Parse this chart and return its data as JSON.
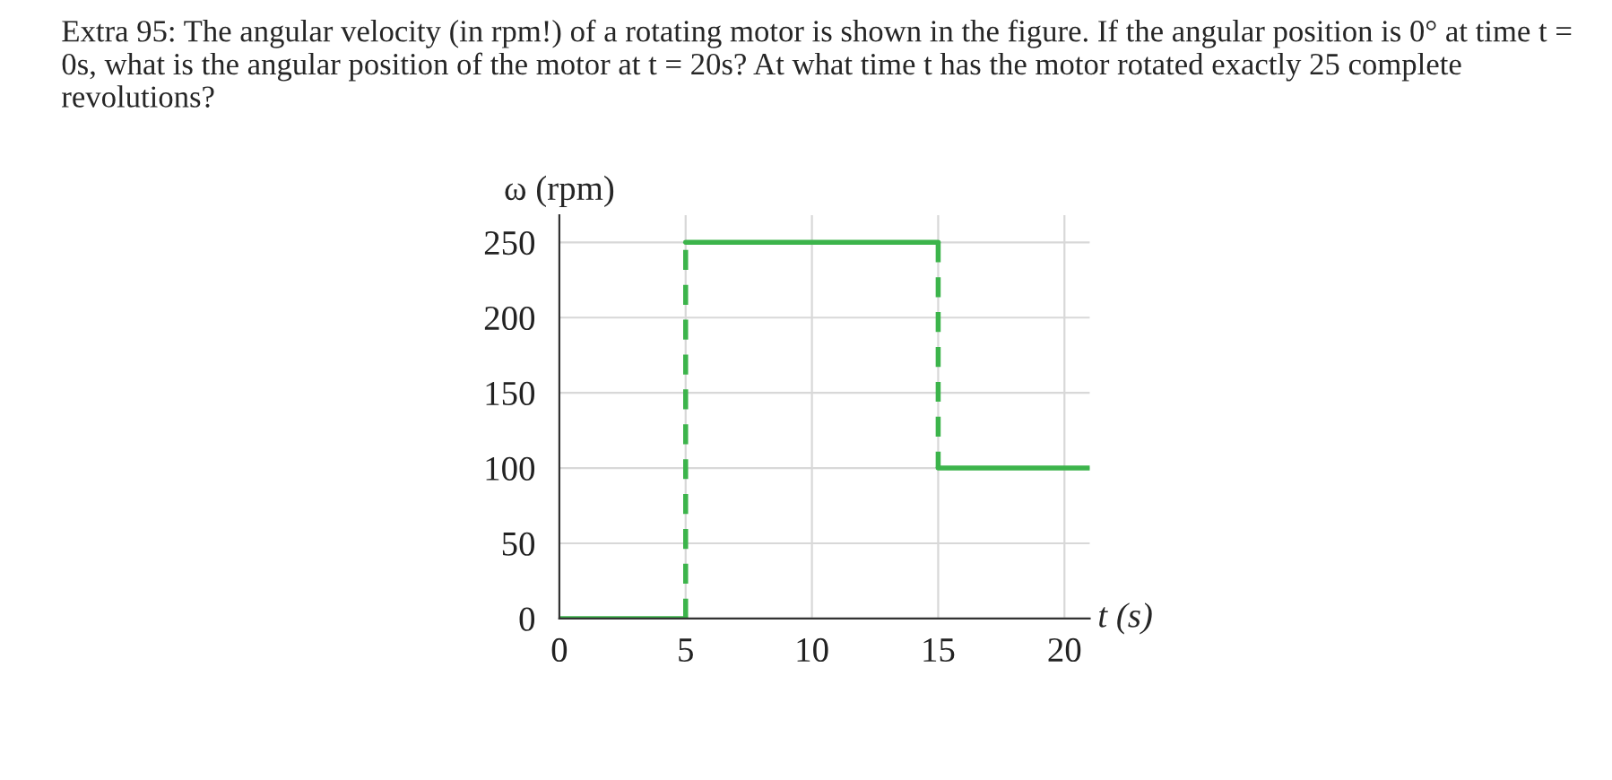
{
  "chart_data": {
    "type": "line",
    "title": "Extra 95: The angular velocity (in rpm!) of a rotating motor is shown in the figure. If the angular position is 0° at time t = 0s, what is the angular position of the motor at t = 20s? At what time t has the motor rotated exactly 25 complete revolutions?",
    "xlabel": "t (s)",
    "ylabel": "ω (rpm)",
    "series": [
      {
        "x": [
          0,
          5
        ],
        "values": [
          0,
          0
        ],
        "color": "#3cb44b",
        "line_style": "solid"
      },
      {
        "x": [
          5,
          5
        ],
        "values": [
          0,
          250
        ],
        "color": "#3cb44b",
        "line_style": "dashed"
      },
      {
        "x": [
          5,
          15
        ],
        "values": [
          250,
          250
        ],
        "color": "#3cb44b",
        "line_style": "solid"
      },
      {
        "x": [
          15,
          15
        ],
        "values": [
          250,
          100
        ],
        "color": "#3cb44b",
        "line_style": "dashed"
      },
      {
        "x": [
          15,
          21
        ],
        "values": [
          100,
          100
        ],
        "color": "#3cb44b",
        "line_style": "solid"
      }
    ],
    "xlim": [
      0,
      21
    ],
    "ylim": [
      0,
      268
    ],
    "xticks": [
      0,
      5,
      10,
      15,
      20
    ],
    "yticks": [
      0,
      50,
      100,
      150,
      200,
      250
    ],
    "grid": true,
    "marker": "none"
  }
}
